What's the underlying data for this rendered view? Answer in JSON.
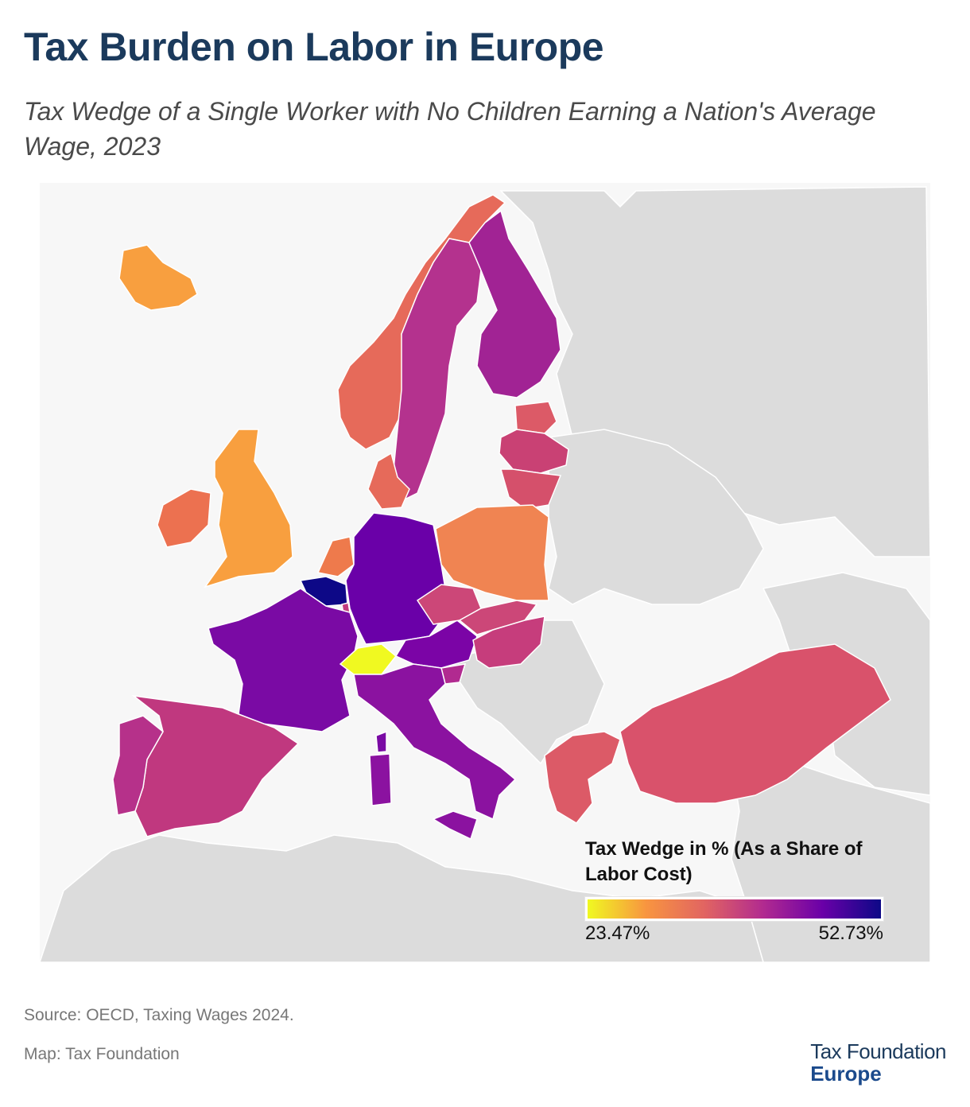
{
  "header": {
    "title": "Tax Burden on Labor in Europe",
    "subtitle": "Tax Wedge of a Single Worker with No Children Earning a Nation's Average Wage, 2023"
  },
  "legend": {
    "title": "Tax Wedge in % (As a Share of Labor Cost)",
    "min_label": "23.47%",
    "max_label": "52.73%",
    "min_value": 23.47,
    "max_value": 52.73,
    "colors": [
      "#f0f921",
      "#f89540",
      "#e16462",
      "#b12a90",
      "#6a00a8",
      "#0d0887"
    ]
  },
  "map": {
    "background_land": "#dcdcdc",
    "sea": "#f7f7f7",
    "countries": [
      {
        "name": "Iceland",
        "color": "#f89f3f"
      },
      {
        "name": "Norway",
        "color": "#e66a5a"
      },
      {
        "name": "Sweden",
        "color": "#b4328e"
      },
      {
        "name": "Finland",
        "color": "#a12394"
      },
      {
        "name": "Ireland",
        "color": "#ec7150"
      },
      {
        "name": "United Kingdom",
        "color": "#f89f3f"
      },
      {
        "name": "Denmark",
        "color": "#e66a5a"
      },
      {
        "name": "Estonia",
        "color": "#dc5a67"
      },
      {
        "name": "Latvia",
        "color": "#c94174"
      },
      {
        "name": "Lithuania",
        "color": "#d5506b"
      },
      {
        "name": "Netherlands",
        "color": "#ee7a4c"
      },
      {
        "name": "Belgium",
        "color": "#0d0887"
      },
      {
        "name": "Luxembourg",
        "color": "#c13b7e"
      },
      {
        "name": "Germany",
        "color": "#6a00a8"
      },
      {
        "name": "Poland",
        "color": "#f08452"
      },
      {
        "name": "France",
        "color": "#7a0aa4"
      },
      {
        "name": "Switzerland",
        "color": "#f0f921"
      },
      {
        "name": "Austria",
        "color": "#7b04a6"
      },
      {
        "name": "Czechia",
        "color": "#cc4778"
      },
      {
        "name": "Slovakia",
        "color": "#cc4778"
      },
      {
        "name": "Hungary",
        "color": "#c63d7c"
      },
      {
        "name": "Slovenia",
        "color": "#b12a90"
      },
      {
        "name": "Italy",
        "color": "#8b12a0"
      },
      {
        "name": "Spain",
        "color": "#c0387f"
      },
      {
        "name": "Portugal",
        "color": "#b6318a"
      },
      {
        "name": "Greece",
        "color": "#dc5a67"
      },
      {
        "name": "Turkey",
        "color": "#d9526b"
      }
    ]
  },
  "footer": {
    "source": "Source: OECD, Taxing Wages 2024.",
    "credit": "Map: Tax Foundation",
    "logo_line1": "Tax Foundation",
    "logo_line2": "Europe"
  }
}
